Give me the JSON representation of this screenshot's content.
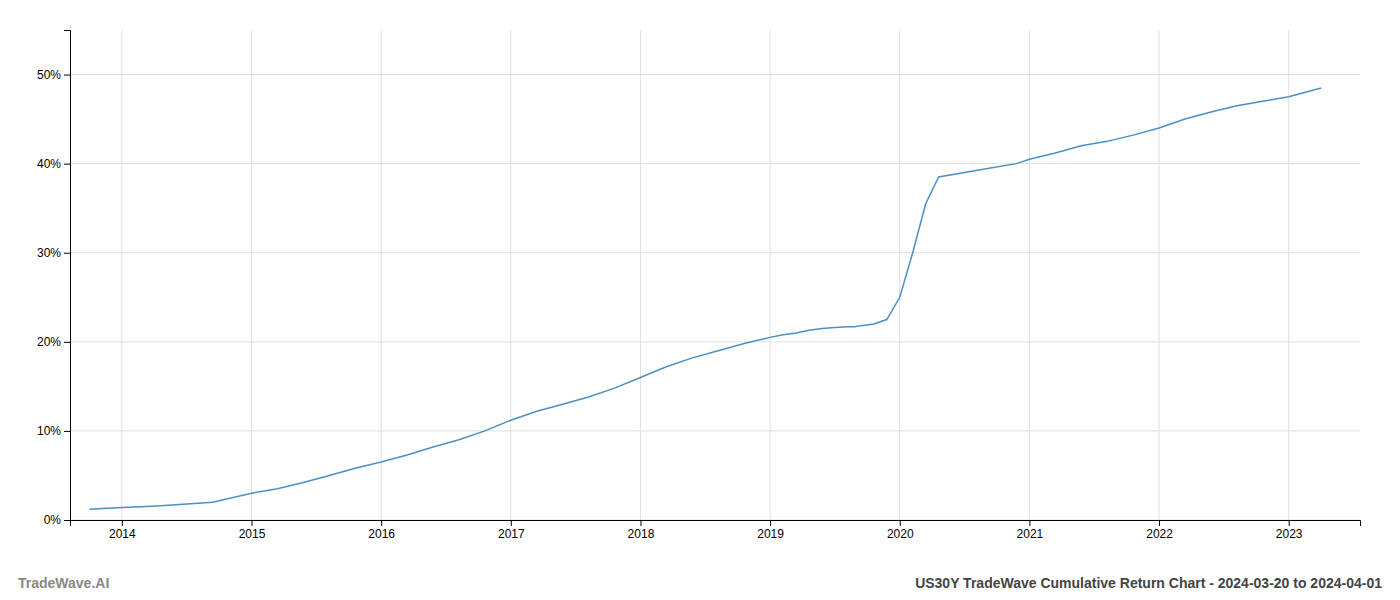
{
  "chart_data": {
    "type": "line",
    "title": "US30Y TradeWave Cumulative Return Chart - 2024-03-20 to 2024-04-01",
    "annotations": [
      {
        "text": "TradeWave.AI"
      }
    ],
    "color": "#4a90c4",
    "grid": true,
    "x": [
      2013.75,
      2014.0,
      2014.15,
      2014.3,
      2014.5,
      2014.7,
      2014.85,
      2015.0,
      2015.2,
      2015.4,
      2015.6,
      2015.8,
      2016.0,
      2016.2,
      2016.4,
      2016.6,
      2016.8,
      2017.0,
      2017.2,
      2017.4,
      2017.6,
      2017.8,
      2018.0,
      2018.2,
      2018.4,
      2018.6,
      2018.8,
      2019.0,
      2019.1,
      2019.2,
      2019.3,
      2019.4,
      2019.5,
      2019.6,
      2019.65,
      2019.7,
      2019.8,
      2019.9,
      2020.0,
      2020.1,
      2020.2,
      2020.3,
      2020.5,
      2020.7,
      2020.9,
      2021.0,
      2021.2,
      2021.4,
      2021.6,
      2021.8,
      2022.0,
      2022.2,
      2022.4,
      2022.6,
      2022.8,
      2023.0,
      2023.25
    ],
    "values": [
      1.2,
      1.4,
      1.5,
      1.6,
      1.8,
      2.0,
      2.5,
      3.0,
      3.5,
      4.2,
      5.0,
      5.8,
      6.5,
      7.3,
      8.2,
      9.0,
      10.0,
      11.2,
      12.2,
      13.0,
      13.8,
      14.8,
      16.0,
      17.2,
      18.2,
      19.0,
      19.8,
      20.5,
      20.8,
      21.0,
      21.3,
      21.5,
      21.6,
      21.7,
      21.7,
      21.8,
      22.0,
      22.5,
      25.0,
      30.0,
      35.5,
      38.5,
      39.0,
      39.5,
      40.0,
      40.5,
      41.2,
      42.0,
      42.5,
      43.2,
      44.0,
      45.0,
      45.8,
      46.5,
      47.0,
      47.5,
      48.5
    ],
    "xlim": [
      2013.6,
      2023.55
    ],
    "xticks": [
      2014,
      2015,
      2016,
      2017,
      2018,
      2019,
      2020,
      2021,
      2022,
      2023
    ],
    "ylim": [
      0,
      55
    ],
    "yticks": [
      {
        "value": 0,
        "label": "0%"
      },
      {
        "value": 10,
        "label": "10%"
      },
      {
        "value": 20,
        "label": "20%"
      },
      {
        "value": 30,
        "label": "30%"
      },
      {
        "value": 40,
        "label": "40%"
      },
      {
        "value": 50,
        "label": "50%"
      }
    ]
  }
}
